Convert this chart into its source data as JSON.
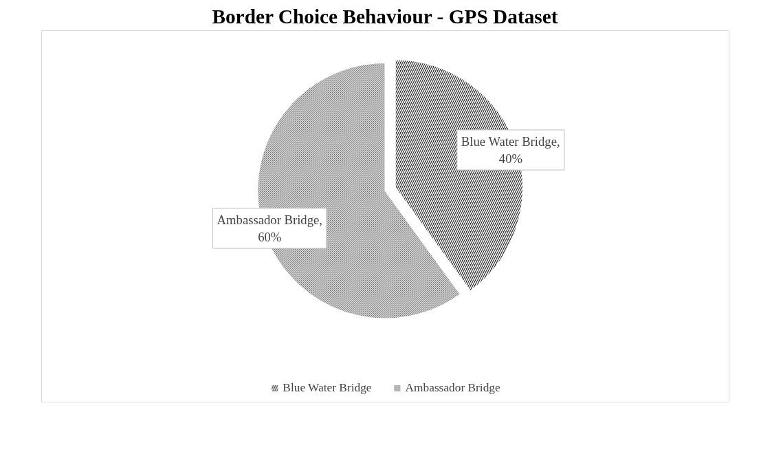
{
  "chart_data": {
    "type": "pie",
    "title": "Border Choice Behaviour - GPS Dataset",
    "categories": [
      "Blue Water Bridge",
      "Ambassador Bridge"
    ],
    "values": [
      40,
      60
    ],
    "value_labels": [
      "Blue Water Bridge, 40%",
      "Ambassador Bridge, 60%"
    ],
    "colors": [
      "#303030",
      "#404040"
    ],
    "legend": "bottom"
  }
}
